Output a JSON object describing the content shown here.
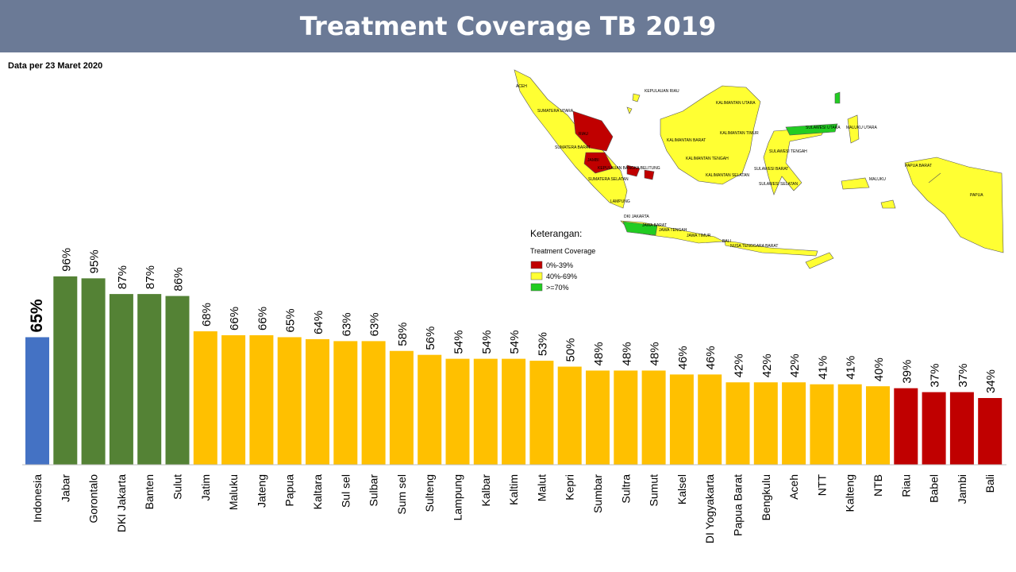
{
  "title": "Treatment Coverage TB 2019",
  "note": "Data per 23 Maret 2020",
  "chart_data": {
    "type": "bar",
    "title": "Treatment Coverage TB 2019",
    "categories": [
      "Indonesia",
      "Jabar",
      "Gorontalo",
      "DKI Jakarta",
      "Banten",
      "Sulut",
      "Jatim",
      "Maluku",
      "Jateng",
      "Papua",
      "Kaltara",
      "Sul sel",
      "Sulbar",
      "Sum sel",
      "Sulteng",
      "Lampung",
      "Kalbar",
      "Kaltim",
      "Malut",
      "Kepri",
      "Sumbar",
      "Sultra",
      "Sumut",
      "Kalsel",
      "DI Yogyakarta",
      "Papua Barat",
      "Bengkulu",
      "Aceh",
      "NTT",
      "Kalteng",
      "NTB",
      "Riau",
      "Babel",
      "Jambi",
      "Bali"
    ],
    "values": [
      65,
      96,
      95,
      87,
      87,
      86,
      68,
      66,
      66,
      65,
      64,
      63,
      63,
      58,
      56,
      54,
      54,
      54,
      53,
      50,
      48,
      48,
      48,
      46,
      46,
      42,
      42,
      42,
      41,
      41,
      40,
      39,
      37,
      37,
      34
    ],
    "value_suffix": "%",
    "ylim": [
      0,
      100
    ],
    "grid": false,
    "colors": {
      "national": "#4472c4",
      "high": "#548235",
      "medium": "#ffc000",
      "low": "#c00000"
    }
  },
  "map": {
    "legend_title": "Keterangan:",
    "legend_subtitle": "Treatment Coverage",
    "legend_items": [
      {
        "label": "0%-39%",
        "color": "#c00000"
      },
      {
        "label": "40%-69%",
        "color": "#ffff33"
      },
      {
        "label": ">=70%",
        "color": "#22cc22"
      }
    ],
    "region_labels": [
      {
        "name": "ACEH",
        "x": 650,
        "y": 110
      },
      {
        "name": "SUMATERA UTARA",
        "x": 677,
        "y": 141
      },
      {
        "name": "RIAU",
        "x": 729,
        "y": 170
      },
      {
        "name": "SUMATERA BARAT",
        "x": 699,
        "y": 187
      },
      {
        "name": "JAMBI",
        "x": 740,
        "y": 203
      },
      {
        "name": "KEPULAUAN BANGKA BELITUNG",
        "x": 753,
        "y": 213
      },
      {
        "name": "SUMATERA SELATAN",
        "x": 741,
        "y": 227
      },
      {
        "name": "LAMPUNG",
        "x": 769,
        "y": 255
      },
      {
        "name": "KEPULAUAN RIAU",
        "x": 812,
        "y": 116
      },
      {
        "name": "DKI JAKARTA",
        "x": 786,
        "y": 274
      },
      {
        "name": "JAWA BARAT",
        "x": 809,
        "y": 285
      },
      {
        "name": "JAWA TENGAH",
        "x": 830,
        "y": 291
      },
      {
        "name": "JAWA TIMUR",
        "x": 865,
        "y": 298
      },
      {
        "name": "BALI",
        "x": 910,
        "y": 305
      },
      {
        "name": "NUSA TENGGARA BARAT",
        "x": 920,
        "y": 311
      },
      {
        "name": "KALIMANTAN UTARA",
        "x": 902,
        "y": 131
      },
      {
        "name": "KALIMANTAN TIMUR",
        "x": 907,
        "y": 169
      },
      {
        "name": "KALIMANTAN BARAT",
        "x": 840,
        "y": 178
      },
      {
        "name": "KALIMANTAN TENGAH",
        "x": 864,
        "y": 201
      },
      {
        "name": "KALIMANTAN SELATAN",
        "x": 889,
        "y": 222
      },
      {
        "name": "SULAWESI UTARA",
        "x": 1015,
        "y": 162
      },
      {
        "name": "MALUKU UTARA",
        "x": 1066,
        "y": 162
      },
      {
        "name": "SULAWESI TENGAH",
        "x": 969,
        "y": 192
      },
      {
        "name": "SULAWESI BARAT",
        "x": 950,
        "y": 214
      },
      {
        "name": "SULAWESI SELATAN",
        "x": 956,
        "y": 233
      },
      {
        "name": "MALUKU",
        "x": 1095,
        "y": 227
      },
      {
        "name": "PAPUA BARAT",
        "x": 1140,
        "y": 210
      },
      {
        "name": "PAPUA",
        "x": 1222,
        "y": 247
      }
    ]
  }
}
